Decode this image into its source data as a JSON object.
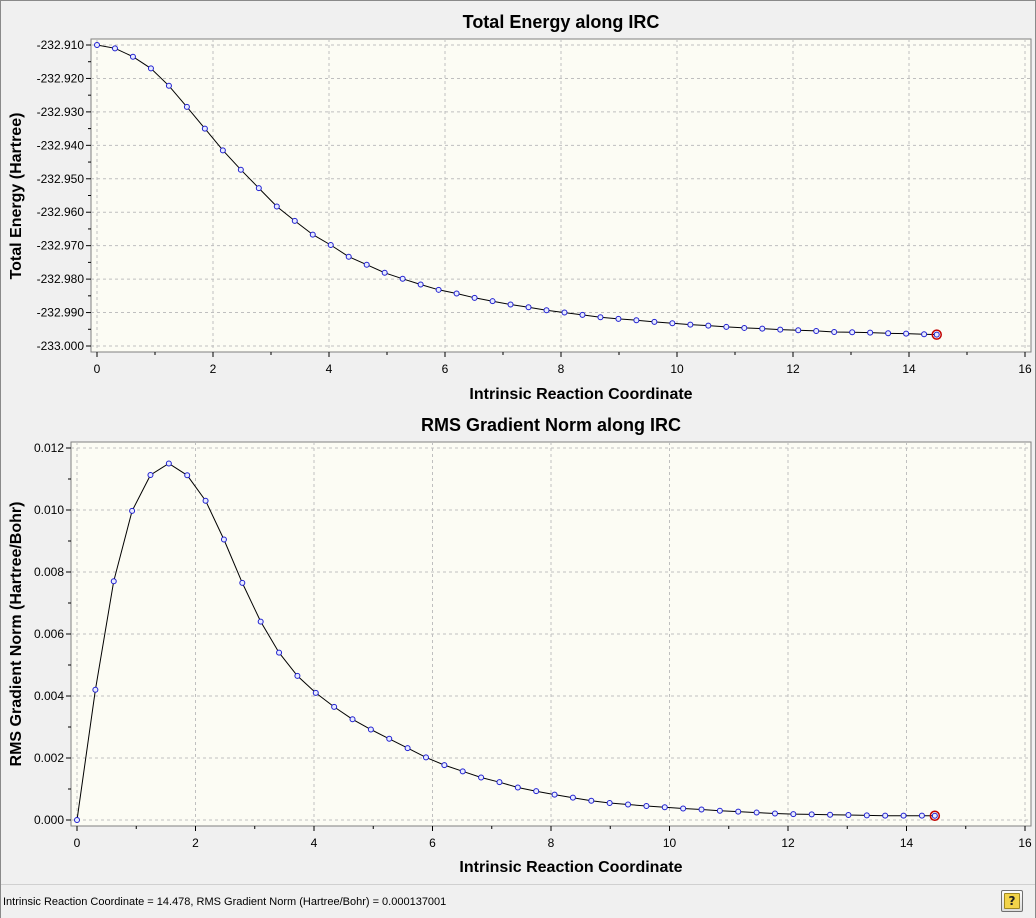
{
  "chart_data": [
    {
      "type": "line",
      "title": "Total Energy along IRC",
      "xlabel": "Intrinsic Reaction Coordinate",
      "ylabel": "Total Energy (Hartree)",
      "xlim": [
        0,
        16
      ],
      "ylim": [
        -233.0,
        -232.91
      ],
      "x_ticks": [
        "0",
        "2",
        "4",
        "6",
        "8",
        "10",
        "12",
        "14",
        "16"
      ],
      "y_ticks": [
        "-232.910",
        "-232.920",
        "-232.930",
        "-232.940",
        "-232.950",
        "-232.960",
        "-232.970",
        "-232.980",
        "-232.990",
        "-233.000"
      ],
      "y_tick_values": [
        -232.91,
        -232.92,
        -232.93,
        -232.94,
        -232.95,
        -232.96,
        -232.97,
        -232.98,
        -232.99,
        -233.0
      ],
      "grid": true,
      "series": [
        {
          "x": [
            0,
            0.31,
            0.62,
            0.93,
            1.24,
            1.55,
            1.86,
            2.17,
            2.48,
            2.79,
            3.1,
            3.41,
            3.72,
            4.03,
            4.34,
            4.65,
            4.96,
            5.27,
            5.58,
            5.89,
            6.2,
            6.51,
            6.82,
            7.13,
            7.44,
            7.75,
            8.06,
            8.37,
            8.68,
            8.99,
            9.3,
            9.61,
            9.92,
            10.23,
            10.54,
            10.85,
            11.16,
            11.47,
            11.78,
            12.09,
            12.4,
            12.71,
            13.02,
            13.33,
            13.64,
            13.95,
            14.26,
            14.478
          ],
          "y": [
            -232.91,
            -232.911,
            -232.9135,
            -232.917,
            -232.9222,
            -232.9285,
            -232.935,
            -232.9415,
            -232.9473,
            -232.9528,
            -232.9583,
            -232.9626,
            -232.9667,
            -232.9698,
            -232.9733,
            -232.9757,
            -232.9781,
            -232.9799,
            -232.9816,
            -232.9832,
            -232.9843,
            -232.9856,
            -232.9866,
            -232.9876,
            -232.9884,
            -232.9893,
            -232.99,
            -232.9907,
            -232.9914,
            -232.9919,
            -232.9923,
            -232.9928,
            -232.9932,
            -232.9936,
            -232.9939,
            -232.9943,
            -232.9946,
            -232.9948,
            -232.9951,
            -232.9953,
            -232.9955,
            -232.9958,
            -232.9959,
            -232.996,
            -232.9962,
            -232.9963,
            -232.9965,
            -232.9966
          ]
        }
      ]
    },
    {
      "type": "line",
      "title": "RMS Gradient Norm along IRC",
      "xlabel": "Intrinsic Reaction Coordinate",
      "ylabel": "RMS Gradient Norm (Hartree/Bohr)",
      "xlim": [
        0,
        16
      ],
      "ylim": [
        0,
        0.012
      ],
      "x_ticks": [
        "0",
        "2",
        "4",
        "6",
        "8",
        "10",
        "12",
        "14",
        "16"
      ],
      "y_ticks": [
        "0.012",
        "0.010",
        "0.008",
        "0.006",
        "0.004",
        "0.002",
        "0.000"
      ],
      "y_tick_values": [
        0.012,
        0.01,
        0.008,
        0.006,
        0.004,
        0.002,
        0.0
      ],
      "grid": true,
      "series": [
        {
          "x": [
            0,
            0.31,
            0.62,
            0.93,
            1.24,
            1.55,
            1.86,
            2.17,
            2.48,
            2.79,
            3.1,
            3.41,
            3.72,
            4.03,
            4.34,
            4.65,
            4.96,
            5.27,
            5.58,
            5.89,
            6.2,
            6.51,
            6.82,
            7.13,
            7.44,
            7.75,
            8.06,
            8.37,
            8.68,
            8.99,
            9.3,
            9.61,
            9.92,
            10.23,
            10.54,
            10.85,
            11.16,
            11.47,
            11.78,
            12.09,
            12.4,
            12.71,
            13.02,
            13.33,
            13.64,
            13.95,
            14.26,
            14.478
          ],
          "y": [
            0.0,
            0.0042,
            0.0077,
            0.00997,
            0.01113,
            0.0115,
            0.01112,
            0.0103,
            0.00905,
            0.00765,
            0.0064,
            0.0054,
            0.00465,
            0.0041,
            0.00365,
            0.00325,
            0.00292,
            0.00262,
            0.00232,
            0.00202,
            0.00177,
            0.00157,
            0.00137,
            0.00122,
            0.00105,
            0.00093,
            0.00082,
            0.00072,
            0.00062,
            0.00055,
            0.0005,
            0.00045,
            0.00041,
            0.00037,
            0.00034,
            0.0003,
            0.00027,
            0.00024,
            0.00021,
            0.00019,
            0.00018,
            0.00017,
            0.00016,
            0.00015,
            0.00014,
            0.00014,
            0.00014,
            0.000137
          ]
        }
      ]
    }
  ],
  "status": {
    "text": "Intrinsic Reaction Coordinate = 14.478, RMS Gradient Norm (Hartree/Bohr) = 0.000137001"
  },
  "icons": {
    "help": "help-icon"
  },
  "colors": {
    "plot_background": "#fcfcf4",
    "line": "#000000",
    "marker_stroke": "#1f1fd0",
    "marker_fill": "#e8ecff",
    "selected_marker": "#c00000",
    "grid": "#bfbfbf"
  }
}
